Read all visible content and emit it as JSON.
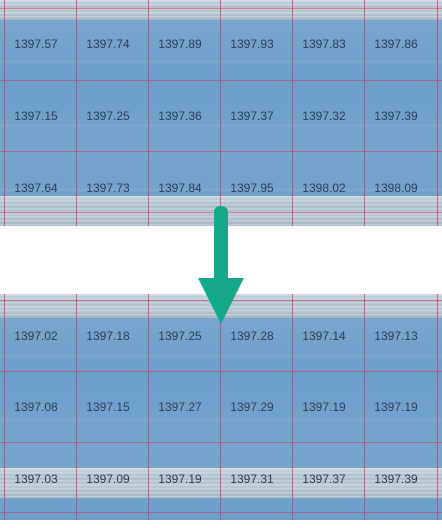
{
  "panels": [
    {
      "rows": [
        [
          "1397.57",
          "1397.74",
          "1397.89",
          "1397.93",
          "1397.83",
          "1397.86"
        ],
        [
          "1397.15",
          "1397.25",
          "1397.36",
          "1397.37",
          "1397.32",
          "1397.39"
        ],
        [
          "1397.64",
          "1397.73",
          "1397.84",
          "1397.95",
          "1398.02",
          "1398.09"
        ]
      ]
    },
    {
      "rows": [
        [
          "1397.02",
          "1397.18",
          "1397.25",
          "1397.28",
          "1397.14",
          "1397.13"
        ],
        [
          "1397.08",
          "1397.15",
          "1397.27",
          "1397.29",
          "1397.19",
          "1397.19"
        ],
        [
          "1397.03",
          "1397.09",
          "1397.19",
          "1397.31",
          "1397.37",
          "1397.39"
        ]
      ]
    }
  ],
  "colors": {
    "panel": "#6d9fcb",
    "grid_line": "#cd3c5a",
    "arrow": "#14a88a",
    "text": "#2a3d52"
  },
  "icons": {
    "arrow": "arrow-down-icon"
  }
}
